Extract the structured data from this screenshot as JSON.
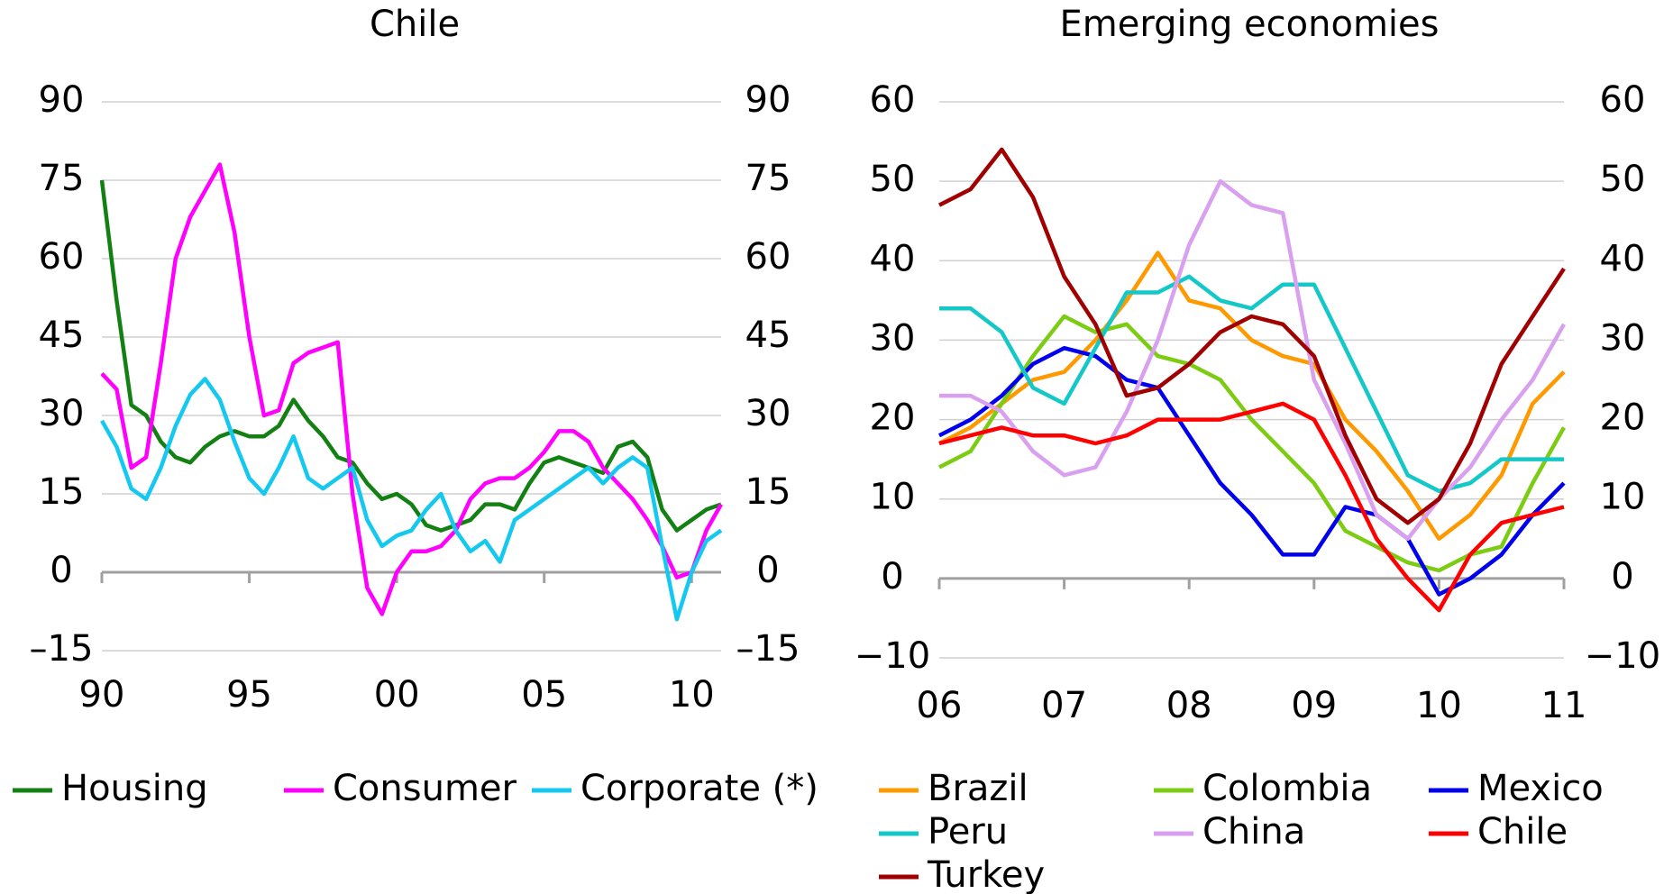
{
  "chart_data": [
    {
      "type": "line",
      "title": "Chile",
      "x": [
        1990,
        1990.5,
        1991,
        1991.5,
        1992,
        1992.5,
        1993,
        1993.5,
        1994,
        1994.5,
        1995,
        1995.5,
        1996,
        1996.5,
        1997,
        1997.5,
        1998,
        1998.5,
        1999,
        1999.5,
        2000,
        2000.5,
        2001,
        2001.5,
        2002,
        2002.5,
        2003,
        2003.5,
        2004,
        2004.5,
        2005,
        2005.5,
        2006,
        2006.5,
        2007,
        2007.5,
        2008,
        2008.5,
        2009,
        2009.5,
        2010,
        2010.5,
        2011
      ],
      "xlim": [
        1990,
        2011
      ],
      "xticks": [
        {
          "value": 1990,
          "label": "90"
        },
        {
          "value": 1995,
          "label": "95"
        },
        {
          "value": 2000,
          "label": "00"
        },
        {
          "value": 2005,
          "label": "05"
        },
        {
          "value": 2010,
          "label": "10"
        }
      ],
      "ylim": [
        -15,
        90
      ],
      "yticks": [
        {
          "value": -15,
          "label": "–15"
        },
        0,
        15,
        30,
        45,
        60,
        75,
        90
      ],
      "grid": true,
      "series": [
        {
          "name": "Housing",
          "color": "#138013",
          "values": [
            75,
            52,
            32,
            30,
            25,
            22,
            21,
            24,
            26,
            27,
            26,
            26,
            28,
            33,
            29,
            26,
            22,
            21,
            17,
            14,
            15,
            13,
            9,
            8,
            9,
            10,
            13,
            13,
            12,
            17,
            21,
            22,
            21,
            20,
            19,
            24,
            25,
            22,
            12,
            8,
            10,
            12,
            13
          ]
        },
        {
          "name": "Consumer",
          "color": "#ff00ff",
          "values": [
            38,
            35,
            20,
            22,
            40,
            60,
            68,
            73,
            78,
            65,
            45,
            30,
            31,
            40,
            42,
            43,
            44,
            15,
            -3,
            -8,
            0,
            4,
            4,
            5,
            8,
            14,
            17,
            18,
            18,
            20,
            23,
            27,
            27,
            25,
            20,
            17,
            14,
            10,
            5,
            -1,
            0,
            8,
            13
          ]
        },
        {
          "name": "Corporate (*)",
          "color": "#14c8f0",
          "values": [
            29,
            24,
            16,
            14,
            20,
            28,
            34,
            37,
            33,
            25,
            18,
            15,
            20,
            26,
            18,
            16,
            18,
            20,
            10,
            5,
            7,
            8,
            12,
            15,
            8,
            4,
            6,
            2,
            10,
            12,
            14,
            16,
            18,
            20,
            17,
            20,
            22,
            20,
            5,
            -9,
            0,
            6,
            8
          ]
        }
      ]
    },
    {
      "type": "line",
      "title": "Emerging economies",
      "x": [
        2006,
        2006.25,
        2006.5,
        2006.75,
        2007,
        2007.25,
        2007.5,
        2007.75,
        2008,
        2008.25,
        2008.5,
        2008.75,
        2009,
        2009.25,
        2009.5,
        2009.75,
        2010,
        2010.25,
        2010.5,
        2010.75,
        2011
      ],
      "xlim": [
        2006,
        2011
      ],
      "xticks": [
        {
          "value": 2006,
          "label": "06"
        },
        {
          "value": 2007,
          "label": "07"
        },
        {
          "value": 2008,
          "label": "08"
        },
        {
          "value": 2009,
          "label": "09"
        },
        {
          "value": 2010,
          "label": "10"
        },
        {
          "value": 2011,
          "label": "11"
        }
      ],
      "ylim": [
        -10,
        60
      ],
      "yticks": [
        {
          "value": -10,
          "label": "−10"
        },
        0,
        10,
        20,
        30,
        40,
        50,
        60
      ],
      "grid": true,
      "series": [
        {
          "name": "Brazil",
          "color": "#ff9900",
          "values": [
            17,
            19,
            22,
            25,
            26,
            30,
            35,
            41,
            35,
            34,
            30,
            28,
            27,
            20,
            16,
            11,
            5,
            8,
            13,
            22,
            26
          ]
        },
        {
          "name": "Colombia",
          "color": "#7ccc14",
          "values": [
            14,
            16,
            22,
            28,
            33,
            31,
            32,
            28,
            27,
            25,
            20,
            16,
            12,
            6,
            4,
            2,
            1,
            3,
            4,
            12,
            19
          ]
        },
        {
          "name": "Mexico",
          "color": "#0000ee",
          "values": [
            18,
            20,
            23,
            27,
            29,
            28,
            25,
            24,
            18,
            12,
            8,
            3,
            3,
            9,
            8,
            5,
            -2,
            0,
            3,
            8,
            12
          ]
        },
        {
          "name": "Peru",
          "color": "#14c8c8",
          "values": [
            34,
            34,
            31,
            24,
            22,
            29,
            36,
            36,
            38,
            35,
            34,
            37,
            37,
            29,
            21,
            13,
            11,
            12,
            15,
            15,
            15
          ]
        },
        {
          "name": "China",
          "color": "#d9a0ef",
          "values": [
            23,
            23,
            21,
            16,
            13,
            14,
            21,
            30,
            42,
            50,
            47,
            46,
            25,
            17,
            8,
            5,
            10,
            14,
            20,
            25,
            32
          ]
        },
        {
          "name": "Chile",
          "color": "#ff0000",
          "values": [
            17,
            18,
            19,
            18,
            18,
            17,
            18,
            20,
            20,
            20,
            21,
            22,
            20,
            13,
            5,
            0,
            -4,
            3,
            7,
            8,
            9
          ]
        },
        {
          "name": "Turkey",
          "color": "#a00000",
          "values": [
            47,
            49,
            54,
            48,
            38,
            32,
            23,
            24,
            27,
            31,
            33,
            32,
            28,
            18,
            10,
            7,
            10,
            17,
            27,
            33,
            39
          ]
        }
      ]
    }
  ]
}
